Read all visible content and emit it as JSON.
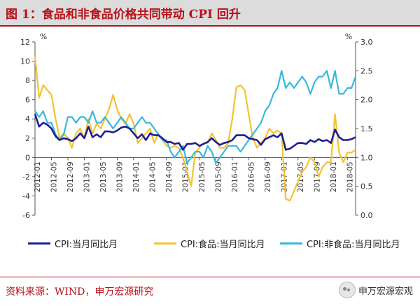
{
  "header": {
    "title": "图 1：食品和非食品价格共同带动 CPI 回升"
  },
  "footer": {
    "source": "资料来源：WIND，申万宏源研究",
    "watermark": "申万宏源宏观"
  },
  "colors": {
    "navy": "#1f1f8f",
    "yellow": "#f3c331",
    "cyan": "#38b8dc"
  },
  "chart_data": {
    "type": "line",
    "x_tick_labels": [
      "2012-01",
      "2012-05",
      "2012-09",
      "2013-01",
      "2013-05",
      "2013-09",
      "2014-01",
      "2014-05",
      "2014-09",
      "2015-01",
      "2015-05",
      "2015-09",
      "2016-01",
      "2016-05",
      "2016-09",
      "2017-01",
      "2017-05",
      "2017-09",
      "2018-01",
      "2018-05"
    ],
    "y_left": {
      "unit_label": "%",
      "min": -6,
      "max": 12,
      "ticks": [
        -6,
        -4,
        -2,
        0,
        2,
        4,
        6,
        8,
        10,
        12
      ]
    },
    "y_right": {
      "unit_label": "%",
      "min": 0.0,
      "max": 3.0,
      "ticks": [
        "0.0",
        "0.5",
        "1.0",
        "1.5",
        "2.0",
        "2.5",
        "3.0"
      ]
    },
    "grid": false,
    "legend_position": "bottom",
    "series": [
      {
        "name": "CPI:当月同比月",
        "axis": "left",
        "color": "#1f1f8f",
        "values": [
          4.5,
          3.2,
          3.6,
          3.4,
          3.0,
          2.2,
          1.8,
          2.0,
          1.9,
          1.7,
          2.0,
          2.5,
          2.0,
          3.2,
          2.1,
          2.4,
          2.1,
          2.7,
          2.7,
          2.6,
          2.8,
          3.1,
          3.2,
          3.0,
          2.5,
          2.0,
          2.4,
          1.8,
          2.5,
          2.3,
          2.3,
          2.0,
          1.6,
          1.6,
          1.4,
          1.5,
          0.8,
          1.4,
          1.4,
          1.5,
          1.2,
          1.4,
          1.6,
          2.0,
          1.6,
          1.3,
          1.5,
          1.6,
          1.8,
          2.3,
          2.3,
          2.3,
          2.0,
          1.9,
          1.8,
          1.3,
          1.9,
          2.1,
          2.3,
          2.1,
          2.5,
          0.8,
          0.9,
          1.2,
          1.5,
          1.5,
          1.4,
          1.8,
          1.6,
          1.9,
          1.7,
          1.8,
          1.5,
          2.9,
          2.1,
          1.8,
          1.8,
          1.9,
          2.1
        ]
      },
      {
        "name": "CPI:食品:当月同比月",
        "axis": "left",
        "color": "#f3c331",
        "values": [
          10.5,
          6.2,
          7.5,
          7.0,
          6.5,
          4.0,
          2.0,
          2.5,
          2.0,
          1.0,
          2.5,
          3.0,
          2.0,
          4.0,
          2.5,
          3.5,
          3.0,
          4.0,
          5.0,
          6.5,
          5.0,
          4.0,
          3.5,
          4.5,
          3.5,
          1.5,
          2.0,
          2.5,
          3.0,
          1.5,
          2.5,
          1.8,
          1.2,
          1.0,
          1.2,
          1.0,
          0.0,
          -1.5,
          -3.0,
          0.5,
          1.0,
          1.5,
          1.5,
          2.5,
          1.8,
          1.0,
          1.0,
          1.5,
          4.0,
          7.3,
          7.5,
          7.0,
          4.5,
          2.0,
          1.0,
          1.5,
          2.0,
          3.0,
          2.5,
          2.8,
          2.5,
          -4.3,
          -4.5,
          -3.5,
          -2.5,
          -1.5,
          -1.0,
          0.0,
          -0.5,
          -2.0,
          -1.0,
          -0.5,
          -0.5,
          4.5,
          0.5,
          -0.5,
          0.5,
          0.5,
          0.8
        ]
      },
      {
        "name": "CPI:非食品:当月同比月",
        "axis": "right",
        "color": "#38b8dc",
        "values": [
          1.8,
          1.7,
          1.8,
          1.6,
          1.6,
          1.4,
          1.3,
          1.4,
          1.7,
          1.7,
          1.6,
          1.7,
          1.7,
          1.6,
          1.8,
          1.6,
          1.6,
          1.7,
          1.6,
          1.5,
          1.6,
          1.7,
          1.6,
          1.5,
          1.5,
          1.6,
          1.7,
          1.6,
          1.6,
          1.5,
          1.4,
          1.3,
          1.3,
          1.1,
          1.0,
          1.1,
          1.2,
          0.9,
          1.0,
          1.1,
          1.1,
          1.0,
          1.2,
          1.1,
          0.9,
          1.0,
          1.1,
          1.2,
          1.2,
          1.2,
          1.1,
          1.2,
          1.3,
          1.4,
          1.5,
          1.6,
          1.8,
          1.9,
          2.1,
          2.2,
          2.5,
          2.2,
          2.3,
          2.2,
          2.3,
          2.4,
          2.3,
          2.1,
          2.3,
          2.4,
          2.4,
          2.5,
          2.2,
          2.5,
          2.1,
          2.1,
          2.2,
          2.2,
          2.4
        ]
      }
    ]
  }
}
